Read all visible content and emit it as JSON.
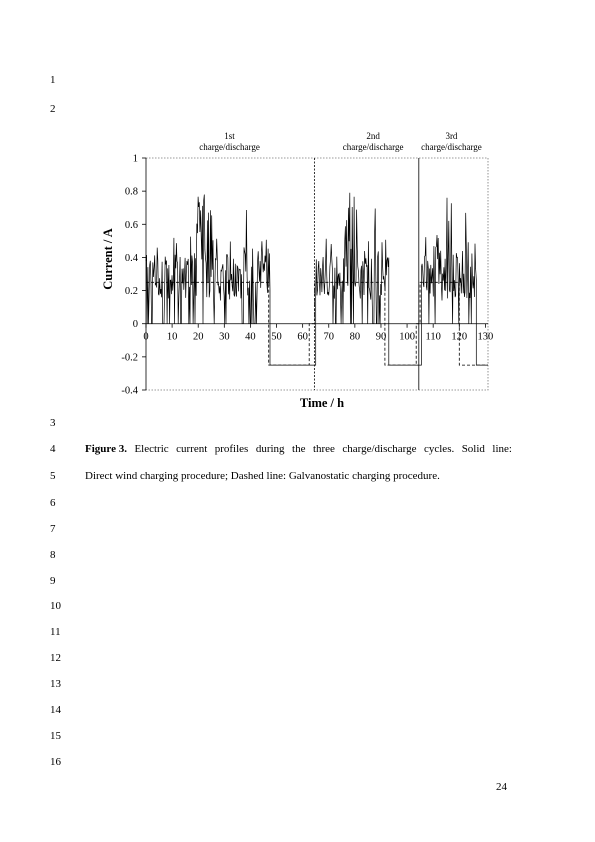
{
  "line_numbers": [
    "1",
    "2",
    "3",
    "4",
    "5",
    "6",
    "7",
    "8",
    "9",
    "10",
    "11",
    "12",
    "13",
    "14",
    "15",
    "16"
  ],
  "caption": {
    "label": "Figure 3.",
    "line1_words": [
      "Electric",
      "current",
      "profiles",
      "during",
      "the",
      "three",
      "charge/discharge",
      "cycles.",
      "Solid",
      "line:"
    ],
    "line2": "Direct wind charging procedure; Dashed line: Galvanostatic charging procedure."
  },
  "page_number": "24",
  "chart_data": {
    "type": "line",
    "xlabel": "Time / h",
    "ylabel": "Current / A",
    "xlim": [
      0,
      131
    ],
    "ylim": [
      -0.4,
      1
    ],
    "x_ticks": [
      0,
      10,
      20,
      30,
      40,
      50,
      60,
      70,
      80,
      90,
      100,
      110,
      120,
      130
    ],
    "y_ticks": [
      {
        "value": 1,
        "label": "1"
      },
      {
        "value": 0.8,
        "label": "0.8"
      },
      {
        "value": 0.6,
        "label": "0.6"
      },
      {
        "value": 0.4,
        "label": "0.4"
      },
      {
        "value": 0.2,
        "label": "0.2"
      },
      {
        "value": 0,
        "label": "0"
      },
      {
        "value": -0.2,
        "label": "-0.2"
      },
      {
        "value": -0.4,
        "label": "-0.4"
      }
    ],
    "grid": false,
    "legend": "none",
    "cycle_labels": [
      {
        "line1": "1st",
        "line2": "charge/discharge",
        "x_center": 32
      },
      {
        "line1": "2nd",
        "line2": "charge/discharge",
        "x_center": 87
      },
      {
        "line1": "3rd",
        "line2": "charge/discharge",
        "x_center": 117
      }
    ],
    "cycle_dividers": [
      {
        "x": 64.5,
        "style": "dashed"
      },
      {
        "x": 104.5,
        "style": "solid"
      }
    ],
    "series": [
      {
        "style": "solid",
        "segments": [
          {
            "type": "wind",
            "x_start": 0,
            "x_end": 47.5,
            "y_max": 0.78,
            "seed": 1
          },
          {
            "type": "step",
            "points": [
              [
                47.5,
                0
              ],
              [
                47.5,
                -0.25
              ],
              [
                65,
                -0.25
              ]
            ]
          },
          {
            "type": "wind",
            "x_start": 65,
            "x_end": 93,
            "y_max": 0.79,
            "seed": 2
          },
          {
            "type": "step",
            "points": [
              [
                93,
                0
              ],
              [
                93,
                -0.25
              ],
              [
                105.5,
                -0.25
              ]
            ]
          },
          {
            "type": "wind",
            "x_start": 105.5,
            "x_end": 126.5,
            "y_max": 0.76,
            "seed": 3
          },
          {
            "type": "step",
            "points": [
              [
                126.5,
                0
              ],
              [
                126.5,
                -0.25
              ],
              [
                131,
                -0.25
              ]
            ]
          }
        ]
      },
      {
        "style": "dashed",
        "points": [
          [
            0,
            0.25
          ],
          [
            47,
            0.25
          ],
          [
            47,
            -0.25
          ],
          [
            62.5,
            -0.25
          ],
          [
            62.5,
            0
          ],
          [
            64.5,
            0
          ],
          [
            64.5,
            0.25
          ],
          [
            91.5,
            0.25
          ],
          [
            91.5,
            -0.25
          ],
          [
            103.5,
            -0.25
          ],
          [
            103.5,
            0
          ],
          [
            105,
            0
          ],
          [
            105,
            0.25
          ],
          [
            120,
            0.25
          ],
          [
            120,
            -0.25
          ],
          [
            131,
            -0.25
          ]
        ]
      }
    ]
  }
}
